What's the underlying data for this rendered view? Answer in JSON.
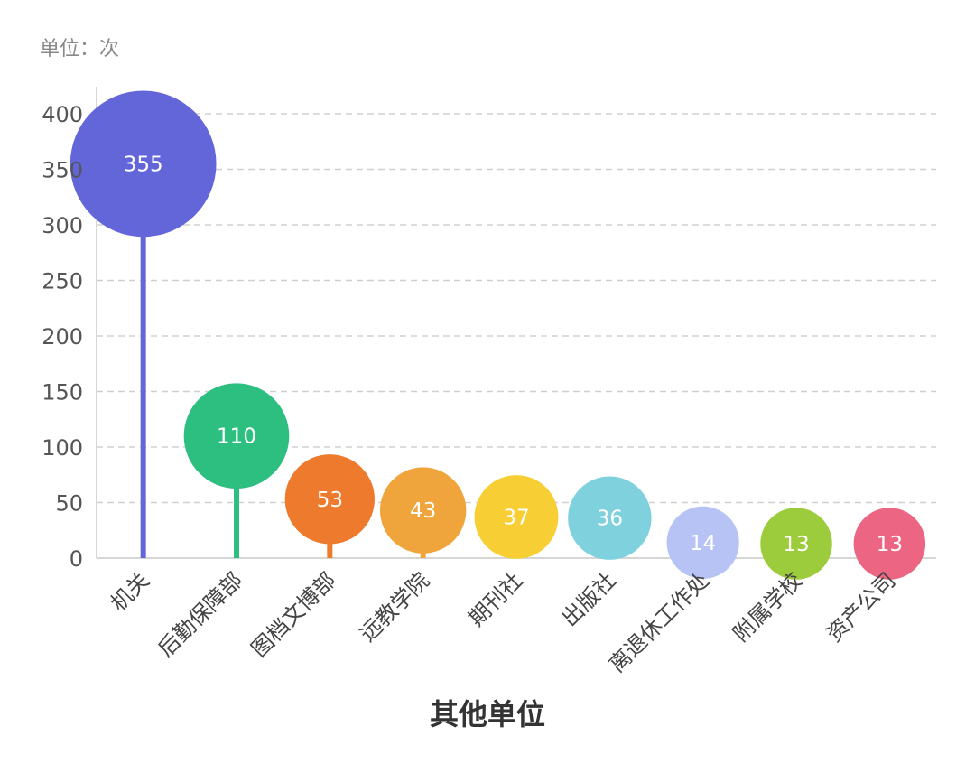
{
  "chart_data": {
    "type": "lollipop-bubble",
    "unit_label": "单位：次",
    "xlabel": "其他单位",
    "ylim": [
      0,
      400
    ],
    "yticks": [
      0,
      50,
      100,
      150,
      200,
      250,
      300,
      350,
      400
    ],
    "grid": true,
    "categories": [
      "机关",
      "后勤保障部",
      "图档文博部",
      "远教学院",
      "期刊社",
      "出版社",
      "离退休工作处",
      "附属学校",
      "资产公司"
    ],
    "values": [
      355,
      110,
      53,
      43,
      37,
      36,
      14,
      13,
      13
    ],
    "colors": [
      "#6366d8",
      "#2cbf7f",
      "#ee7a2d",
      "#f0a53c",
      "#f7cf35",
      "#7fd1de",
      "#b7c3f5",
      "#9ccc3c",
      "#ec6683"
    ]
  }
}
